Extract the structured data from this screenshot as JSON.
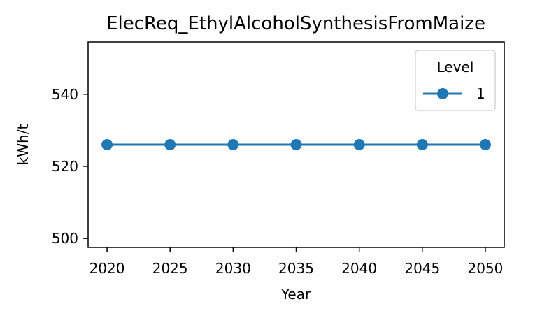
{
  "chart_data": {
    "type": "line",
    "title": "ElecReq_EthylAlcoholSynthesisFromMaize",
    "xlabel": "Year",
    "ylabel": "kWh/t",
    "x": [
      2020,
      2025,
      2030,
      2035,
      2040,
      2045,
      2050
    ],
    "x_ticks": [
      "2020",
      "2025",
      "2030",
      "2035",
      "2040",
      "2045",
      "2050"
    ],
    "y_ticks": [
      "500",
      "520",
      "540"
    ],
    "xlim": [
      2018.5,
      2051.5
    ],
    "ylim": [
      497.5,
      554.5
    ],
    "grid": false,
    "legend": {
      "title": "Level",
      "placement": "top-right"
    },
    "series": [
      {
        "name": "1",
        "color": "#1f77b4",
        "marker": "circle",
        "values": [
          526,
          526,
          526,
          526,
          526,
          526,
          526
        ]
      }
    ]
  }
}
